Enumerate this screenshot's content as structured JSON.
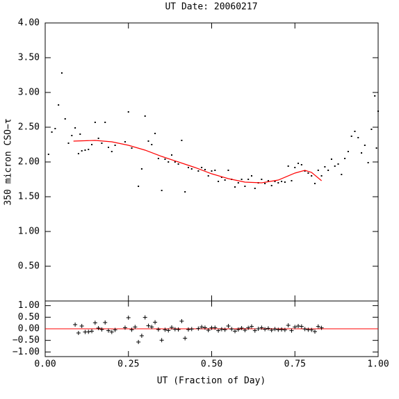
{
  "chart_data": [
    {
      "type": "scatter",
      "title": "UT Date: 20060217",
      "y_label": "350 micron CSO−τ",
      "xlim": [
        0,
        1
      ],
      "xticks": [
        0,
        0.25,
        0.5,
        0.75,
        1
      ],
      "ylim": [
        0,
        4
      ],
      "yticks": [
        {
          "value": 0.5,
          "label": "0.50"
        },
        {
          "value": 1,
          "label": "1.00"
        },
        {
          "value": 1.5,
          "label": "1.50"
        },
        {
          "value": 2,
          "label": "2.00"
        },
        {
          "value": 2.5,
          "label": "2.50"
        },
        {
          "value": 3,
          "label": "3.00"
        },
        {
          "value": 3.5,
          "label": "3.50"
        },
        {
          "value": 4,
          "label": "4.00"
        }
      ],
      "series": [
        {
          "color": "#000000",
          "marker": "dot",
          "x": [
            0.01,
            0.02,
            0.03,
            0.04,
            0.05,
            0.06,
            0.07,
            0.08,
            0.09,
            0.1,
            0.105,
            0.11,
            0.12,
            0.13,
            0.14,
            0.15,
            0.16,
            0.17,
            0.18,
            0.19,
            0.2,
            0.21,
            0.24,
            0.25,
            0.26,
            0.28,
            0.29,
            0.3,
            0.31,
            0.32,
            0.33,
            0.34,
            0.35,
            0.36,
            0.37,
            0.38,
            0.39,
            0.4,
            0.41,
            0.42,
            0.43,
            0.44,
            0.46,
            0.47,
            0.48,
            0.49,
            0.5,
            0.51,
            0.52,
            0.53,
            0.54,
            0.55,
            0.56,
            0.57,
            0.58,
            0.59,
            0.6,
            0.61,
            0.62,
            0.63,
            0.64,
            0.65,
            0.66,
            0.67,
            0.68,
            0.69,
            0.7,
            0.71,
            0.72,
            0.73,
            0.74,
            0.75,
            0.76,
            0.77,
            0.78,
            0.79,
            0.8,
            0.81,
            0.82,
            0.83,
            0.84,
            0.85,
            0.86,
            0.87,
            0.88,
            0.89,
            0.9,
            0.91,
            0.92,
            0.93,
            0.94,
            0.95,
            0.96,
            0.97,
            0.98,
            0.99,
            0.995,
            1.0
          ],
          "values": [
            2.11,
            2.43,
            2.48,
            2.82,
            3.28,
            2.62,
            2.27,
            2.38,
            2.49,
            2.12,
            2.4,
            2.16,
            2.17,
            2.18,
            2.25,
            2.57,
            2.34,
            2.27,
            2.57,
            2.21,
            2.15,
            2.24,
            2.29,
            2.72,
            2.2,
            1.65,
            1.9,
            2.66,
            2.3,
            2.25,
            2.41,
            2.05,
            1.59,
            2.04,
            2.0,
            2.1,
            2.0,
            1.97,
            2.31,
            1.57,
            1.92,
            1.9,
            1.87,
            1.92,
            1.89,
            1.8,
            1.87,
            1.88,
            1.72,
            1.78,
            1.74,
            1.88,
            1.75,
            1.64,
            1.7,
            1.75,
            1.65,
            1.75,
            1.8,
            1.62,
            1.7,
            1.75,
            1.69,
            1.73,
            1.66,
            1.72,
            1.7,
            1.72,
            1.71,
            1.94,
            1.73,
            1.92,
            1.98,
            1.96,
            1.87,
            1.84,
            1.8,
            1.69,
            1.88,
            1.8,
            1.93,
            1.88,
            2.04,
            1.94,
            1.97,
            1.82,
            2.05,
            2.15,
            2.37,
            2.44,
            2.35,
            2.13,
            2.24,
            1.99,
            2.47,
            2.95,
            2.2,
            2.73
          ]
        },
        {
          "color": "#ff0000",
          "mode": "line",
          "x": [
            0.085,
            0.15,
            0.2,
            0.25,
            0.3,
            0.35,
            0.4,
            0.45,
            0.5,
            0.55,
            0.6,
            0.65,
            0.7,
            0.75,
            0.78,
            0.8,
            0.83
          ],
          "values": [
            2.3,
            2.31,
            2.29,
            2.24,
            2.17,
            2.08,
            2.0,
            1.92,
            1.83,
            1.76,
            1.71,
            1.7,
            1.74,
            1.84,
            1.88,
            1.85,
            1.73
          ]
        }
      ]
    },
    {
      "type": "scatter",
      "x_label": "UT (Fraction of Day)",
      "xlim": [
        0,
        1
      ],
      "xticks": [
        {
          "value": 0,
          "label": "0.00"
        },
        {
          "value": 0.25,
          "label": "0.25"
        },
        {
          "value": 0.5,
          "label": "0.50"
        },
        {
          "value": 0.75,
          "label": "0.75"
        },
        {
          "value": 1,
          "label": "1.00"
        }
      ],
      "ylim": [
        -1.2,
        1.2
      ],
      "yticks": [
        {
          "value": -1,
          "label": "−1.00"
        },
        {
          "value": -0.5,
          "label": "−0.50"
        },
        {
          "value": 0,
          "label": "0.00"
        },
        {
          "value": 0.5,
          "label": "0.50"
        },
        {
          "value": 1,
          "label": "1.00"
        }
      ],
      "hline": {
        "value": 0,
        "color": "#ff0000"
      },
      "series": [
        {
          "color": "#000000",
          "marker": "plus",
          "x": [
            0.09,
            0.1,
            0.11,
            0.12,
            0.13,
            0.14,
            0.15,
            0.16,
            0.17,
            0.18,
            0.19,
            0.2,
            0.21,
            0.24,
            0.25,
            0.26,
            0.27,
            0.28,
            0.29,
            0.3,
            0.31,
            0.32,
            0.33,
            0.34,
            0.35,
            0.36,
            0.37,
            0.38,
            0.39,
            0.4,
            0.41,
            0.42,
            0.43,
            0.44,
            0.46,
            0.47,
            0.48,
            0.49,
            0.5,
            0.51,
            0.52,
            0.53,
            0.54,
            0.55,
            0.56,
            0.57,
            0.58,
            0.59,
            0.6,
            0.61,
            0.62,
            0.63,
            0.64,
            0.65,
            0.66,
            0.67,
            0.68,
            0.69,
            0.7,
            0.71,
            0.72,
            0.73,
            0.74,
            0.75,
            0.76,
            0.77,
            0.78,
            0.79,
            0.8,
            0.81,
            0.82,
            0.83
          ],
          "values": [
            0.18,
            -0.18,
            0.12,
            -0.14,
            -0.13,
            -0.1,
            0.26,
            0.03,
            -0.03,
            0.27,
            -0.08,
            -0.14,
            -0.05,
            0.05,
            0.48,
            -0.04,
            0.08,
            -0.57,
            -0.3,
            0.49,
            0.13,
            0.08,
            0.28,
            -0.03,
            -0.49,
            -0.04,
            -0.07,
            0.06,
            -0.02,
            -0.03,
            0.33,
            -0.41,
            -0.03,
            -0.01,
            0.01,
            0.08,
            0.05,
            -0.06,
            0.04,
            0.05,
            -0.08,
            -0.02,
            -0.04,
            0.12,
            -0.01,
            -0.1,
            -0.03,
            0.03,
            -0.06,
            0.04,
            0.1,
            -0.08,
            0.0,
            0.05,
            -0.02,
            0.02,
            -0.06,
            -0.01,
            -0.04,
            -0.03,
            -0.05,
            0.15,
            -0.08,
            0.08,
            0.12,
            0.1,
            -0.01,
            -0.04,
            -0.05,
            -0.12,
            0.1,
            0.04
          ]
        }
      ]
    }
  ]
}
